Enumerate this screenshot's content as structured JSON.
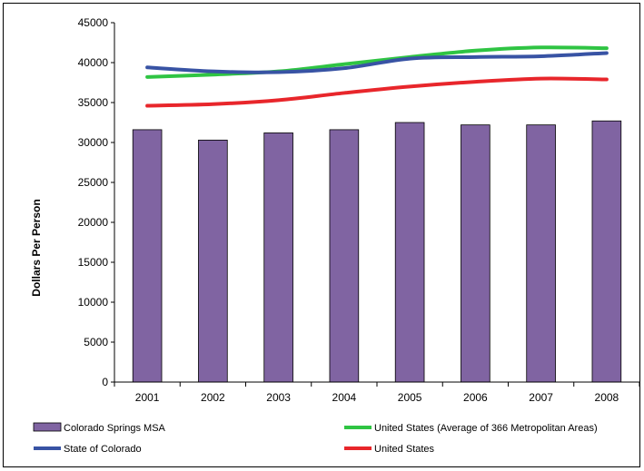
{
  "colors": {
    "bar_fill": "#8064a2",
    "bar_stroke": "#000000",
    "state_of_colorado": "#3853a4",
    "us_metro_avg": "#2fc443",
    "united_states": "#e8262b"
  },
  "chart_data": {
    "type": "bar",
    "title": "",
    "xlabel": "",
    "ylabel": "Dollars Per Person",
    "categories": [
      "2001",
      "2002",
      "2003",
      "2004",
      "2005",
      "2006",
      "2007",
      "2008"
    ],
    "ylim": [
      0,
      45000
    ],
    "yticks": [
      "0",
      "5000",
      "10000",
      "15000",
      "20000",
      "25000",
      "30000",
      "35000",
      "40000",
      "45000"
    ],
    "grid": false,
    "legend_position": "bottom",
    "bars": {
      "name": "Colorado Springs MSA",
      "values": [
        31600,
        30300,
        31200,
        31600,
        32500,
        32200,
        32200,
        32700
      ]
    },
    "series": [
      {
        "key": "us_metro_avg",
        "name": "United States (Average of 366 Metropolitan Areas)",
        "values": [
          38200,
          38500,
          38900,
          39800,
          40700,
          41500,
          41900,
          41800
        ]
      },
      {
        "key": "state_of_colorado",
        "name": "State of Colorado",
        "values": [
          39400,
          38900,
          38800,
          39300,
          40500,
          40700,
          40800,
          41200
        ]
      },
      {
        "key": "united_states",
        "name": "United States",
        "values": [
          34600,
          34800,
          35300,
          36200,
          37000,
          37600,
          38000,
          37900
        ]
      }
    ]
  }
}
